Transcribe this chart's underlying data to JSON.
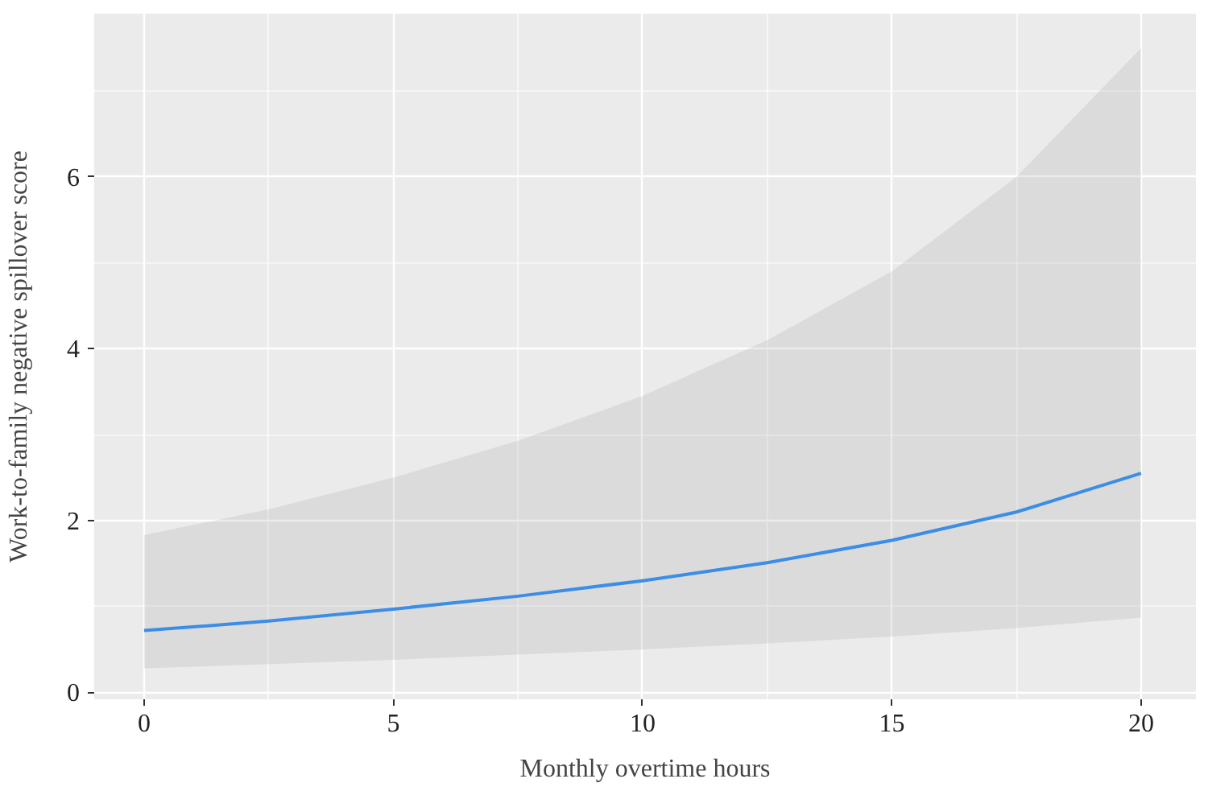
{
  "chart_data": {
    "type": "line",
    "xlabel": "Monthly overtime hours",
    "ylabel": "Work-to-family negative spillover score",
    "x": [
      0,
      2.5,
      5,
      7.5,
      10,
      12.5,
      15,
      17.5,
      20
    ],
    "series": [
      {
        "color": "#3b8de6",
        "values": [
          0.72,
          0.83,
          0.97,
          1.12,
          1.3,
          1.51,
          1.77,
          2.1,
          2.55
        ],
        "lower": [
          0.28,
          0.33,
          0.38,
          0.44,
          0.5,
          0.57,
          0.65,
          0.75,
          0.87
        ],
        "upper": [
          1.83,
          2.13,
          2.5,
          2.93,
          3.45,
          4.1,
          4.9,
          6.0,
          7.5
        ]
      }
    ],
    "xlim": [
      -1,
      21.1
    ],
    "xticks": [
      0,
      5,
      10,
      15,
      20
    ],
    "ylim": [
      -0.08,
      7.9
    ],
    "yticks": [
      0,
      2,
      4,
      6
    ],
    "grid": true,
    "marker": "none",
    "line_style": "solid"
  }
}
